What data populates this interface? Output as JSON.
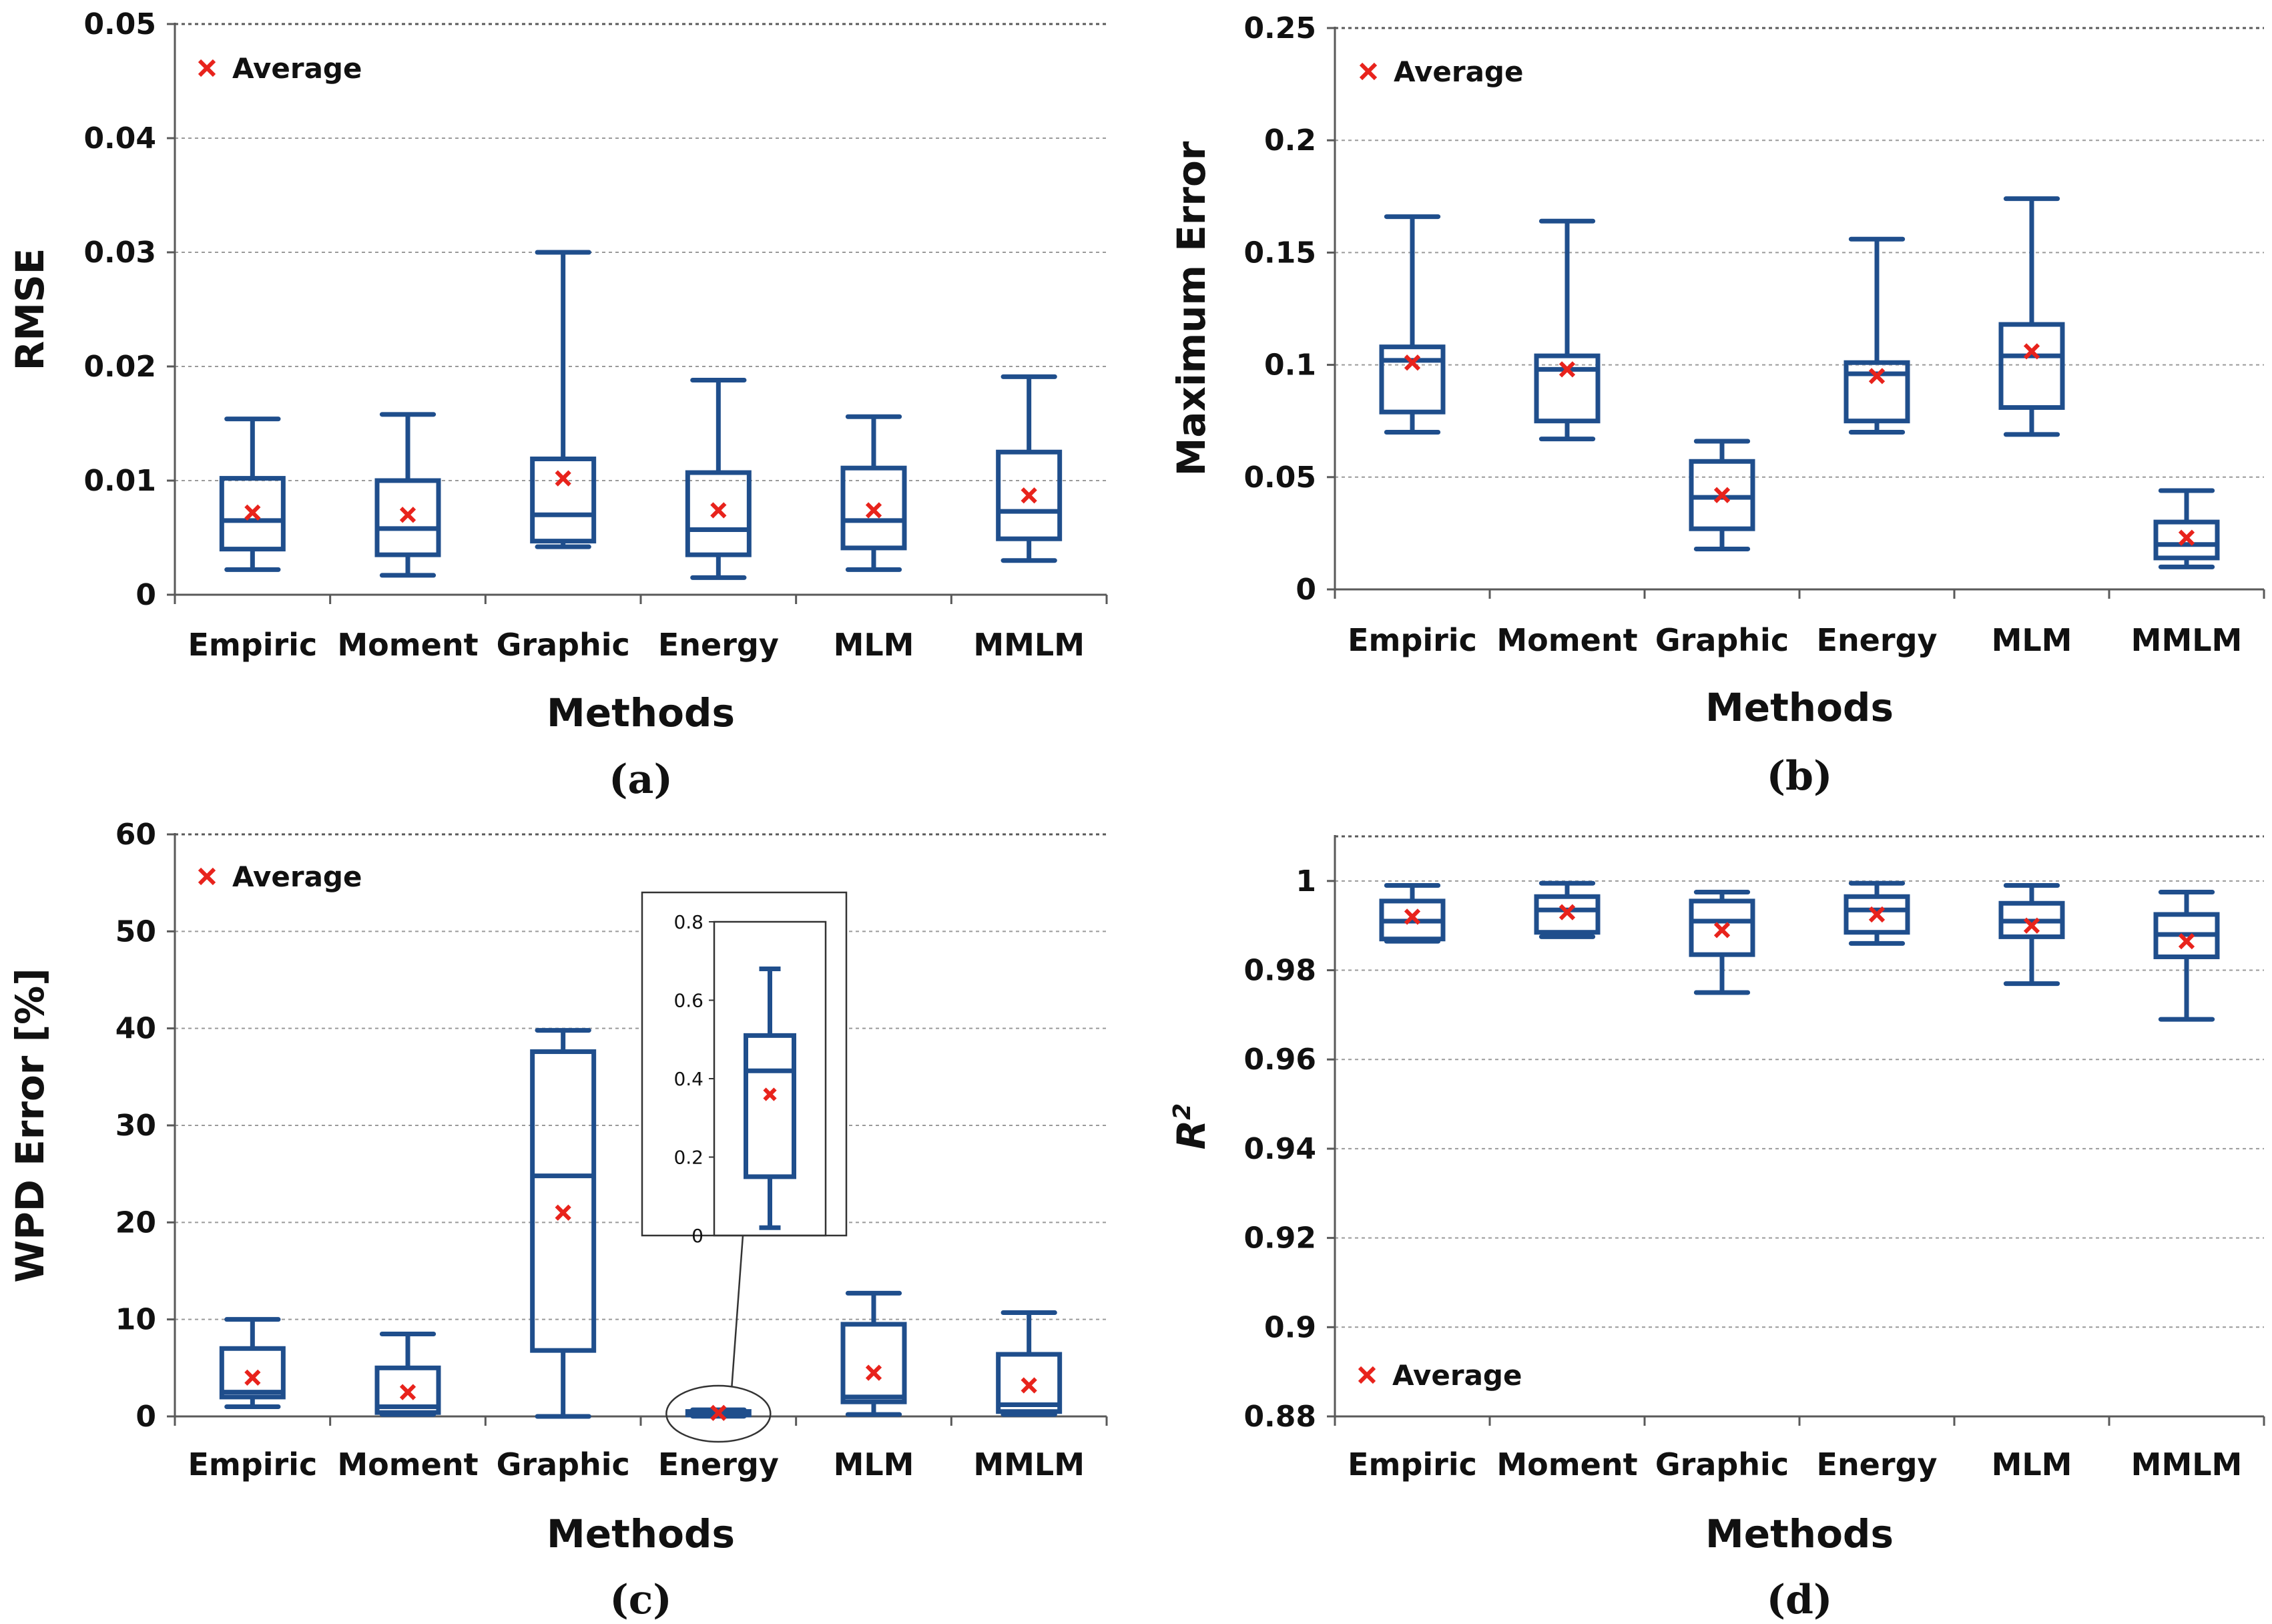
{
  "chart_data": [
    {
      "type": "box",
      "panel_label": "(a)",
      "xlabel": "Methods",
      "ylabel": "RMSE",
      "ylim": [
        0,
        0.05
      ],
      "yticks": [
        "0",
        "0.01",
        "0.02",
        "0.03",
        "0.04",
        "0.05"
      ],
      "ytick_values": [
        0,
        0.01,
        0.02,
        0.03,
        0.04,
        0.05
      ],
      "legend": "Average",
      "legend_position": "top-left",
      "categories": [
        "Empiric",
        "Moment",
        "Graphic",
        "Energy",
        "MLM",
        "MMLM"
      ],
      "series": [
        {
          "min": 0.0022,
          "q1": 0.004,
          "median": 0.0065,
          "q3": 0.0102,
          "max": 0.0154,
          "mean": 0.0072
        },
        {
          "min": 0.0017,
          "q1": 0.0035,
          "median": 0.0058,
          "q3": 0.01,
          "max": 0.0158,
          "mean": 0.007
        },
        {
          "min": 0.0042,
          "q1": 0.0047,
          "median": 0.007,
          "q3": 0.0119,
          "max": 0.03,
          "mean": 0.0102
        },
        {
          "min": 0.0015,
          "q1": 0.0035,
          "median": 0.0057,
          "q3": 0.0107,
          "max": 0.0188,
          "mean": 0.0074
        },
        {
          "min": 0.0022,
          "q1": 0.0041,
          "median": 0.0065,
          "q3": 0.0111,
          "max": 0.0156,
          "mean": 0.0074
        },
        {
          "min": 0.003,
          "q1": 0.0049,
          "median": 0.0073,
          "q3": 0.0125,
          "max": 0.0191,
          "mean": 0.0087
        }
      ]
    },
    {
      "type": "box",
      "panel_label": "(b)",
      "xlabel": "Methods",
      "ylabel": "Maximum Error",
      "ylim": [
        0,
        0.25
      ],
      "yticks": [
        "0",
        "0.05",
        "0.1",
        "0.15",
        "0.2",
        "0.25"
      ],
      "ytick_values": [
        0,
        0.05,
        0.1,
        0.15,
        0.2,
        0.25
      ],
      "legend": "Average",
      "legend_position": "top-left",
      "categories": [
        "Empiric",
        "Moment",
        "Graphic",
        "Energy",
        "MLM",
        "MMLM"
      ],
      "series": [
        {
          "min": 0.07,
          "q1": 0.079,
          "median": 0.102,
          "q3": 0.108,
          "max": 0.166,
          "mean": 0.101
        },
        {
          "min": 0.067,
          "q1": 0.075,
          "median": 0.098,
          "q3": 0.104,
          "max": 0.164,
          "mean": 0.098
        },
        {
          "min": 0.018,
          "q1": 0.027,
          "median": 0.041,
          "q3": 0.057,
          "max": 0.066,
          "mean": 0.042
        },
        {
          "min": 0.07,
          "q1": 0.075,
          "median": 0.096,
          "q3": 0.101,
          "max": 0.156,
          "mean": 0.095
        },
        {
          "min": 0.069,
          "q1": 0.081,
          "median": 0.104,
          "q3": 0.118,
          "max": 0.174,
          "mean": 0.106
        },
        {
          "min": 0.01,
          "q1": 0.014,
          "median": 0.02,
          "q3": 0.03,
          "max": 0.044,
          "mean": 0.023
        }
      ]
    },
    {
      "type": "box",
      "panel_label": "(c)",
      "xlabel": "Methods",
      "ylabel": "WPD Error [%]",
      "ylim": [
        0,
        60
      ],
      "yticks": [
        "0",
        "10",
        "20",
        "30",
        "40",
        "50",
        "60"
      ],
      "ytick_values": [
        0,
        10,
        20,
        30,
        40,
        50,
        60
      ],
      "legend": "Average",
      "legend_position": "top-left",
      "categories": [
        "Empiric",
        "Moment",
        "Graphic",
        "Energy",
        "MLM",
        "MMLM"
      ],
      "series": [
        {
          "min": 1.0,
          "q1": 2.0,
          "median": 2.5,
          "q3": 7.0,
          "max": 10.0,
          "mean": 4.0
        },
        {
          "min": 0.2,
          "q1": 0.4,
          "median": 1.0,
          "q3": 5.0,
          "max": 8.5,
          "mean": 2.5
        },
        {
          "min": 0.0,
          "q1": 6.8,
          "median": 24.8,
          "q3": 37.6,
          "max": 39.8,
          "mean": 21.0
        },
        {
          "min": 0.02,
          "q1": 0.15,
          "median": 0.42,
          "q3": 0.51,
          "max": 0.68,
          "mean": 0.36
        },
        {
          "min": 0.2,
          "q1": 1.5,
          "median": 2.0,
          "q3": 9.5,
          "max": 12.7,
          "mean": 4.5
        },
        {
          "min": 0.2,
          "q1": 0.5,
          "median": 1.2,
          "q3": 6.4,
          "max": 10.7,
          "mean": 3.2
        }
      ],
      "inset": {
        "category": "Energy",
        "ylim": [
          0,
          0.8
        ],
        "yticks": [
          "0",
          "0.2",
          "0.4",
          "0.6",
          "0.8"
        ],
        "ytick_values": [
          0,
          0.2,
          0.4,
          0.6,
          0.8
        ]
      }
    },
    {
      "type": "box",
      "panel_label": "(d)",
      "xlabel": "Methods",
      "ylabel": "R",
      "ylabel_sup": "2",
      "ylim": [
        0.88,
        1.01
      ],
      "yticks": [
        "0.88",
        "0.9",
        "0.92",
        "0.94",
        "0.96",
        "0.98",
        "1"
      ],
      "ytick_values": [
        0.88,
        0.9,
        0.92,
        0.94,
        0.96,
        0.98,
        1.0
      ],
      "legend": "Average",
      "legend_position": "bottom-left",
      "categories": [
        "Empiric",
        "Moment",
        "Graphic",
        "Energy",
        "MLM",
        "MMLM"
      ],
      "series": [
        {
          "min": 0.9865,
          "q1": 0.987,
          "median": 0.991,
          "q3": 0.9955,
          "max": 0.999,
          "mean": 0.992
        },
        {
          "min": 0.9875,
          "q1": 0.9885,
          "median": 0.9935,
          "q3": 0.9965,
          "max": 0.9995,
          "mean": 0.993
        },
        {
          "min": 0.975,
          "q1": 0.9835,
          "median": 0.991,
          "q3": 0.9955,
          "max": 0.9975,
          "mean": 0.989
        },
        {
          "min": 0.986,
          "q1": 0.9885,
          "median": 0.9935,
          "q3": 0.9965,
          "max": 0.9995,
          "mean": 0.9925
        },
        {
          "min": 0.977,
          "q1": 0.9875,
          "median": 0.991,
          "q3": 0.995,
          "max": 0.999,
          "mean": 0.99
        },
        {
          "min": 0.969,
          "q1": 0.983,
          "median": 0.988,
          "q3": 0.9925,
          "max": 0.9975,
          "mean": 0.9865
        }
      ]
    }
  ]
}
